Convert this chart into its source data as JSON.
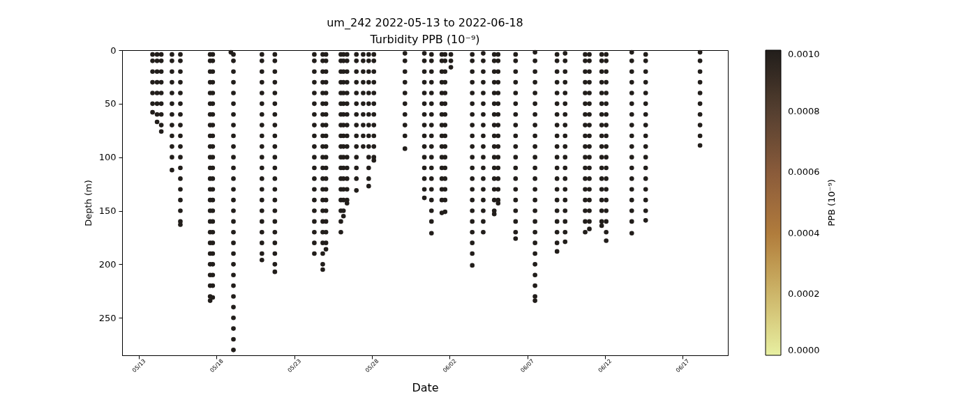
{
  "chart_data": {
    "type": "scatter",
    "title": "um_242 2022-05-13 to 2022-06-18",
    "subtitle": "Turbidity PPB (10⁻⁹)",
    "xlabel": "Date",
    "ylabel": "Depth (m)",
    "clabel": "PPB (10⁻⁹)",
    "marker": "circle",
    "xlim": [
      "2022-05-11T22:00",
      "2022-06-19T22:00"
    ],
    "xticks": [
      {
        "value": "2022-05-13",
        "label": "05/13"
      },
      {
        "value": "2022-05-18",
        "label": "05/18"
      },
      {
        "value": "2022-05-23",
        "label": "05/23"
      },
      {
        "value": "2022-05-28",
        "label": "05/28"
      },
      {
        "value": "2022-06-02",
        "label": "06/02"
      },
      {
        "value": "2022-06-07",
        "label": "06/07"
      },
      {
        "value": "2022-06-12",
        "label": "06/12"
      },
      {
        "value": "2022-06-17",
        "label": "06/17"
      }
    ],
    "ylim": [
      285,
      0
    ],
    "yticks": [
      0,
      50,
      100,
      150,
      200,
      250
    ],
    "clim": [
      0,
      0.001
    ],
    "cticks": [
      {
        "value": 0,
        "label": "0.0000"
      },
      {
        "value": 0.0002,
        "label": "0.0002"
      },
      {
        "value": 0.0004,
        "label": "0.0004"
      },
      {
        "value": 0.0006,
        "label": "0.0006"
      },
      {
        "value": 0.0008,
        "label": "0.0008"
      },
      {
        "value": 0.001,
        "label": "0.0010"
      }
    ],
    "x": [
      "2022-05-13T21:00",
      "2022-05-13T21:00",
      "2022-05-13T21:00",
      "2022-05-13T21:00",
      "2022-05-13T21:00",
      "2022-05-13T21:00",
      "2022-05-13T21:00",
      "2022-05-14T04:00",
      "2022-05-14T04:00",
      "2022-05-14T04:00",
      "2022-05-14T04:00",
      "2022-05-14T04:00",
      "2022-05-14T04:00",
      "2022-05-14T04:00",
      "2022-05-14T04:00",
      "2022-05-14T10:30",
      "2022-05-14T10:30",
      "2022-05-14T10:30",
      "2022-05-14T10:30",
      "2022-05-14T10:30",
      "2022-05-14T10:30",
      "2022-05-14T10:30",
      "2022-05-14T10:30",
      "2022-05-14T10:30",
      "2022-05-15T03:00",
      "2022-05-15T03:00",
      "2022-05-15T03:00",
      "2022-05-15T03:00",
      "2022-05-15T03:00",
      "2022-05-15T03:00",
      "2022-05-15T03:00",
      "2022-05-15T03:00",
      "2022-05-15T03:00",
      "2022-05-15T03:00",
      "2022-05-15T03:00",
      "2022-05-15T03:00",
      "2022-05-15T16:00",
      "2022-05-15T16:00",
      "2022-05-15T16:00",
      "2022-05-15T16:00",
      "2022-05-15T16:00",
      "2022-05-15T16:00",
      "2022-05-15T16:00",
      "2022-05-15T16:00",
      "2022-05-15T16:00",
      "2022-05-15T16:00",
      "2022-05-15T16:00",
      "2022-05-15T16:00",
      "2022-05-15T16:00",
      "2022-05-15T16:00",
      "2022-05-15T16:00",
      "2022-05-15T16:00",
      "2022-05-15T16:00",
      "2022-05-15T16:00",
      "2022-05-17T14:00",
      "2022-05-17T14:00",
      "2022-05-17T14:00",
      "2022-05-17T14:00",
      "2022-05-17T14:00",
      "2022-05-17T14:00",
      "2022-05-17T14:00",
      "2022-05-17T14:00",
      "2022-05-17T14:00",
      "2022-05-17T14:00",
      "2022-05-17T14:00",
      "2022-05-17T14:00",
      "2022-05-17T14:00",
      "2022-05-17T14:00",
      "2022-05-17T14:00",
      "2022-05-17T14:00",
      "2022-05-17T14:00",
      "2022-05-17T14:00",
      "2022-05-17T14:00",
      "2022-05-17T14:00",
      "2022-05-17T14:00",
      "2022-05-17T14:00",
      "2022-05-17T14:00",
      "2022-05-17T14:00",
      "2022-05-17T14:00",
      "2022-05-17T18:00",
      "2022-05-17T18:00",
      "2022-05-17T18:00",
      "2022-05-17T18:00",
      "2022-05-17T18:00",
      "2022-05-17T18:00",
      "2022-05-17T18:00",
      "2022-05-17T18:00",
      "2022-05-17T18:00",
      "2022-05-17T18:00",
      "2022-05-17T18:00",
      "2022-05-17T18:00",
      "2022-05-17T18:00",
      "2022-05-17T18:00",
      "2022-05-17T18:00",
      "2022-05-17T18:00",
      "2022-05-17T18:00",
      "2022-05-17T18:00",
      "2022-05-17T18:00",
      "2022-05-17T18:00",
      "2022-05-17T18:00",
      "2022-05-17T18:00",
      "2022-05-17T18:00",
      "2022-05-17T18:00",
      "2022-05-18T22:00",
      "2022-05-19T02:00",
      "2022-05-19T02:00",
      "2022-05-19T02:00",
      "2022-05-19T02:00",
      "2022-05-19T02:00",
      "2022-05-19T02:00",
      "2022-05-19T02:00",
      "2022-05-19T02:00",
      "2022-05-19T02:00",
      "2022-05-19T02:00",
      "2022-05-19T02:00",
      "2022-05-19T02:00",
      "2022-05-19T02:00",
      "2022-05-19T02:00",
      "2022-05-19T02:00",
      "2022-05-19T02:00",
      "2022-05-19T02:00",
      "2022-05-19T02:00",
      "2022-05-19T02:00",
      "2022-05-19T02:00",
      "2022-05-19T02:00",
      "2022-05-19T02:00",
      "2022-05-19T02:00",
      "2022-05-19T02:00",
      "2022-05-19T02:00",
      "2022-05-19T02:00",
      "2022-05-19T02:00",
      "2022-05-19T02:00",
      "2022-05-19T02:00",
      "2022-05-20T22:00",
      "2022-05-20T22:00",
      "2022-05-20T22:00",
      "2022-05-20T22:00",
      "2022-05-20T22:00",
      "2022-05-20T22:00",
      "2022-05-20T22:00",
      "2022-05-20T22:00",
      "2022-05-20T22:00",
      "2022-05-20T22:00",
      "2022-05-20T22:00",
      "2022-05-20T22:00",
      "2022-05-20T22:00",
      "2022-05-20T22:00",
      "2022-05-20T22:00",
      "2022-05-20T22:00",
      "2022-05-20T22:00",
      "2022-05-20T22:00",
      "2022-05-20T22:00",
      "2022-05-20T22:00",
      "2022-05-20T22:00",
      "2022-05-21T18:00",
      "2022-05-21T18:00",
      "2022-05-21T18:00",
      "2022-05-21T18:00",
      "2022-05-21T18:00",
      "2022-05-21T18:00",
      "2022-05-21T18:00",
      "2022-05-21T18:00",
      "2022-05-21T18:00",
      "2022-05-21T18:00",
      "2022-05-21T18:00",
      "2022-05-21T18:00",
      "2022-05-21T18:00",
      "2022-05-21T18:00",
      "2022-05-21T18:00",
      "2022-05-21T18:00",
      "2022-05-21T18:00",
      "2022-05-21T18:00",
      "2022-05-21T18:00",
      "2022-05-21T18:00",
      "2022-05-21T18:00",
      "2022-05-21T18:00",
      "2022-05-24T07:00",
      "2022-05-24T07:00",
      "2022-05-24T07:00",
      "2022-05-24T07:00",
      "2022-05-24T07:00",
      "2022-05-24T07:00",
      "2022-05-24T07:00",
      "2022-05-24T07:00",
      "2022-05-24T07:00",
      "2022-05-24T07:00",
      "2022-05-24T07:00",
      "2022-05-24T07:00",
      "2022-05-24T07:00",
      "2022-05-24T07:00",
      "2022-05-24T07:00",
      "2022-05-24T07:00",
      "2022-05-24T07:00",
      "2022-05-24T07:00",
      "2022-05-24T07:00",
      "2022-05-24T07:00",
      "2022-05-24T20:00",
      "2022-05-24T20:00",
      "2022-05-24T20:00",
      "2022-05-24T20:00",
      "2022-05-24T20:00",
      "2022-05-24T20:00",
      "2022-05-24T20:00",
      "2022-05-24T20:00",
      "2022-05-24T20:00",
      "2022-05-24T20:00",
      "2022-05-24T20:00",
      "2022-05-24T20:00",
      "2022-05-24T20:00",
      "2022-05-24T20:00",
      "2022-05-24T20:00",
      "2022-05-24T20:00",
      "2022-05-24T20:00",
      "2022-05-24T20:00",
      "2022-05-24T20:00",
      "2022-05-24T20:00",
      "2022-05-24T20:00",
      "2022-05-24T20:00",
      "2022-05-25T01:00",
      "2022-05-25T01:00",
      "2022-05-25T01:00",
      "2022-05-25T01:00",
      "2022-05-25T01:00",
      "2022-05-25T01:00",
      "2022-05-25T01:00",
      "2022-05-25T01:00",
      "2022-05-25T01:00",
      "2022-05-25T01:00",
      "2022-05-25T01:00",
      "2022-05-25T01:00",
      "2022-05-25T01:00",
      "2022-05-25T01:00",
      "2022-05-25T01:00",
      "2022-05-25T01:00",
      "2022-05-25T01:00",
      "2022-05-25T01:00",
      "2022-05-25T01:00",
      "2022-05-25T01:00",
      "2022-05-26T00:00",
      "2022-05-26T00:00",
      "2022-05-26T00:00",
      "2022-05-26T00:00",
      "2022-05-26T00:00",
      "2022-05-26T00:00",
      "2022-05-26T00:00",
      "2022-05-26T00:00",
      "2022-05-26T00:00",
      "2022-05-26T00:00",
      "2022-05-26T00:00",
      "2022-05-26T00:00",
      "2022-05-26T00:00",
      "2022-05-26T00:00",
      "2022-05-26T00:00",
      "2022-05-26T00:00",
      "2022-05-26T00:00",
      "2022-05-26T00:00",
      "2022-05-26T04:00",
      "2022-05-26T04:00",
      "2022-05-26T04:00",
      "2022-05-26T04:00",
      "2022-05-26T04:00",
      "2022-05-26T04:00",
      "2022-05-26T04:00",
      "2022-05-26T04:00",
      "2022-05-26T04:00",
      "2022-05-26T04:00",
      "2022-05-26T04:00",
      "2022-05-26T04:00",
      "2022-05-26T04:00",
      "2022-05-26T04:00",
      "2022-05-26T04:00",
      "2022-05-26T04:00",
      "2022-05-26T04:00",
      "2022-05-26T09:30",
      "2022-05-26T09:30",
      "2022-05-26T09:30",
      "2022-05-26T09:30",
      "2022-05-26T09:30",
      "2022-05-26T09:30",
      "2022-05-26T09:30",
      "2022-05-26T09:30",
      "2022-05-26T09:30",
      "2022-05-26T09:30",
      "2022-05-26T09:30",
      "2022-05-26T09:30",
      "2022-05-26T09:30",
      "2022-05-26T09:30",
      "2022-05-26T09:30",
      "2022-05-26T09:30",
      "2022-05-27T00:00",
      "2022-05-27T00:00",
      "2022-05-27T00:00",
      "2022-05-27T00:00",
      "2022-05-27T00:00",
      "2022-05-27T00:00",
      "2022-05-27T00:00",
      "2022-05-27T00:00",
      "2022-05-27T00:00",
      "2022-05-27T00:00",
      "2022-05-27T00:00",
      "2022-05-27T00:00",
      "2022-05-27T00:00",
      "2022-05-27T00:00",
      "2022-05-27T10:30",
      "2022-05-27T10:30",
      "2022-05-27T10:30",
      "2022-05-27T10:30",
      "2022-05-27T10:30",
      "2022-05-27T10:30",
      "2022-05-27T10:30",
      "2022-05-27T10:30",
      "2022-05-27T10:30",
      "2022-05-27T10:30",
      "2022-05-27T19:00",
      "2022-05-27T19:00",
      "2022-05-27T19:00",
      "2022-05-27T19:00",
      "2022-05-27T19:00",
      "2022-05-27T19:00",
      "2022-05-27T19:00",
      "2022-05-27T19:00",
      "2022-05-27T19:00",
      "2022-05-27T19:00",
      "2022-05-27T19:00",
      "2022-05-27T19:00",
      "2022-05-27T19:00",
      "2022-05-27T19:00",
      "2022-05-28T03:00",
      "2022-05-28T03:00",
      "2022-05-28T03:00",
      "2022-05-28T03:00",
      "2022-05-28T03:00",
      "2022-05-28T03:00",
      "2022-05-28T03:00",
      "2022-05-28T03:00",
      "2022-05-28T03:00",
      "2022-05-28T03:00",
      "2022-05-28T03:00",
      "2022-05-28T03:00",
      "2022-05-30T03:00",
      "2022-05-30T03:00",
      "2022-05-30T03:00",
      "2022-05-30T03:00",
      "2022-05-30T03:00",
      "2022-05-30T03:00",
      "2022-05-30T03:00",
      "2022-05-30T03:00",
      "2022-05-30T03:00",
      "2022-05-30T03:00",
      "2022-05-31T09:00",
      "2022-05-31T09:00",
      "2022-05-31T09:00",
      "2022-05-31T09:00",
      "2022-05-31T09:00",
      "2022-05-31T09:00",
      "2022-05-31T09:00",
      "2022-05-31T09:00",
      "2022-05-31T09:00",
      "2022-05-31T09:00",
      "2022-05-31T09:00",
      "2022-05-31T09:00",
      "2022-05-31T09:00",
      "2022-05-31T09:00",
      "2022-05-31T09:00",
      "2022-05-31T20:00",
      "2022-05-31T20:00",
      "2022-05-31T20:00",
      "2022-05-31T20:00",
      "2022-05-31T20:00",
      "2022-05-31T20:00",
      "2022-05-31T20:00",
      "2022-05-31T20:00",
      "2022-05-31T20:00",
      "2022-05-31T20:00",
      "2022-05-31T20:00",
      "2022-05-31T20:00",
      "2022-05-31T20:00",
      "2022-05-31T20:00",
      "2022-05-31T20:00",
      "2022-05-31T20:00",
      "2022-05-31T20:00",
      "2022-05-31T20:00",
      "2022-06-01T12:00",
      "2022-06-01T12:00",
      "2022-06-01T12:00",
      "2022-06-01T12:00",
      "2022-06-01T12:00",
      "2022-06-01T12:00",
      "2022-06-01T12:00",
      "2022-06-01T12:00",
      "2022-06-01T12:00",
      "2022-06-01T12:00",
      "2022-06-01T12:00",
      "2022-06-01T12:00",
      "2022-06-01T12:00",
      "2022-06-01T12:00",
      "2022-06-01T12:00",
      "2022-06-01T12:00",
      "2022-06-01T17:00",
      "2022-06-01T17:00",
      "2022-06-01T17:00",
      "2022-06-01T17:00",
      "2022-06-01T17:00",
      "2022-06-01T17:00",
      "2022-06-01T17:00",
      "2022-06-01T17:00",
      "2022-06-01T17:00",
      "2022-06-01T17:00",
      "2022-06-01T17:00",
      "2022-06-01T17:00",
      "2022-06-01T17:00",
      "2022-06-01T17:00",
      "2022-06-01T17:00",
      "2022-06-01T17:00",
      "2022-06-02T02:00",
      "2022-06-02T02:00",
      "2022-06-02T02:00",
      "2022-06-03T11:00",
      "2022-06-03T11:00",
      "2022-06-03T11:00",
      "2022-06-03T11:00",
      "2022-06-03T11:00",
      "2022-06-03T11:00",
      "2022-06-03T11:00",
      "2022-06-03T11:00",
      "2022-06-03T11:00",
      "2022-06-03T11:00",
      "2022-06-03T11:00",
      "2022-06-03T11:00",
      "2022-06-03T11:00",
      "2022-06-03T11:00",
      "2022-06-03T11:00",
      "2022-06-03T11:00",
      "2022-06-03T11:00",
      "2022-06-03T11:00",
      "2022-06-03T11:00",
      "2022-06-03T11:00",
      "2022-06-03T11:00",
      "2022-06-04T04:00",
      "2022-06-04T04:00",
      "2022-06-04T04:00",
      "2022-06-04T04:00",
      "2022-06-04T04:00",
      "2022-06-04T04:00",
      "2022-06-04T04:00",
      "2022-06-04T04:00",
      "2022-06-04T04:00",
      "2022-06-04T04:00",
      "2022-06-04T04:00",
      "2022-06-04T04:00",
      "2022-06-04T04:00",
      "2022-06-04T04:00",
      "2022-06-04T04:00",
      "2022-06-04T04:00",
      "2022-06-04T04:00",
      "2022-06-04T04:00",
      "2022-06-04T21:00",
      "2022-06-04T21:00",
      "2022-06-04T21:00",
      "2022-06-04T21:00",
      "2022-06-04T21:00",
      "2022-06-04T21:00",
      "2022-06-04T21:00",
      "2022-06-04T21:00",
      "2022-06-04T21:00",
      "2022-06-04T21:00",
      "2022-06-04T21:00",
      "2022-06-04T21:00",
      "2022-06-04T21:00",
      "2022-06-04T21:00",
      "2022-06-04T21:00",
      "2022-06-04T21:00",
      "2022-06-04T21:00",
      "2022-06-05T03:00",
      "2022-06-05T03:00",
      "2022-06-05T03:00",
      "2022-06-05T03:00",
      "2022-06-05T03:00",
      "2022-06-05T03:00",
      "2022-06-05T03:00",
      "2022-06-05T03:00",
      "2022-06-05T03:00",
      "2022-06-05T03:00",
      "2022-06-05T03:00",
      "2022-06-05T03:00",
      "2022-06-05T03:00",
      "2022-06-05T03:00",
      "2022-06-05T03:00",
      "2022-06-05T03:00",
      "2022-06-06T06:00",
      "2022-06-06T06:00",
      "2022-06-06T06:00",
      "2022-06-06T06:00",
      "2022-06-06T06:00",
      "2022-06-06T06:00",
      "2022-06-06T06:00",
      "2022-06-06T06:00",
      "2022-06-06T06:00",
      "2022-06-06T06:00",
      "2022-06-06T06:00",
      "2022-06-06T06:00",
      "2022-06-06T06:00",
      "2022-06-06T06:00",
      "2022-06-06T06:00",
      "2022-06-06T06:00",
      "2022-06-06T06:00",
      "2022-06-06T06:00",
      "2022-06-06T06:00",
      "2022-06-07T12:00",
      "2022-06-07T12:00",
      "2022-06-07T12:00",
      "2022-06-07T12:00",
      "2022-06-07T12:00",
      "2022-06-07T12:00",
      "2022-06-07T12:00",
      "2022-06-07T12:00",
      "2022-06-07T12:00",
      "2022-06-07T12:00",
      "2022-06-07T12:00",
      "2022-06-07T12:00",
      "2022-06-07T12:00",
      "2022-06-07T12:00",
      "2022-06-07T12:00",
      "2022-06-07T12:00",
      "2022-06-07T12:00",
      "2022-06-07T12:00",
      "2022-06-07T12:00",
      "2022-06-07T12:00",
      "2022-06-07T12:00",
      "2022-06-07T12:00",
      "2022-06-07T12:00",
      "2022-06-07T12:00",
      "2022-06-07T12:00",
      "2022-06-08T22:00",
      "2022-06-08T22:00",
      "2022-06-08T22:00",
      "2022-06-08T22:00",
      "2022-06-08T22:00",
      "2022-06-08T22:00",
      "2022-06-08T22:00",
      "2022-06-08T22:00",
      "2022-06-08T22:00",
      "2022-06-08T22:00",
      "2022-06-08T22:00",
      "2022-06-08T22:00",
      "2022-06-08T22:00",
      "2022-06-08T22:00",
      "2022-06-08T22:00",
      "2022-06-08T22:00",
      "2022-06-08T22:00",
      "2022-06-08T22:00",
      "2022-06-08T22:00",
      "2022-06-08T22:00",
      "2022-06-09T10:30",
      "2022-06-09T10:30",
      "2022-06-09T10:30",
      "2022-06-09T10:30",
      "2022-06-09T10:30",
      "2022-06-09T10:30",
      "2022-06-09T10:30",
      "2022-06-09T10:30",
      "2022-06-09T10:30",
      "2022-06-09T10:30",
      "2022-06-09T10:30",
      "2022-06-09T10:30",
      "2022-06-09T10:30",
      "2022-06-09T10:30",
      "2022-06-09T10:30",
      "2022-06-09T10:30",
      "2022-06-09T10:30",
      "2022-06-09T10:30",
      "2022-06-09T10:30",
      "2022-06-10T17:30",
      "2022-06-10T17:30",
      "2022-06-10T17:30",
      "2022-06-10T17:30",
      "2022-06-10T17:30",
      "2022-06-10T17:30",
      "2022-06-10T17:30",
      "2022-06-10T17:30",
      "2022-06-10T17:30",
      "2022-06-10T17:30",
      "2022-06-10T17:30",
      "2022-06-10T17:30",
      "2022-06-10T17:30",
      "2022-06-10T17:30",
      "2022-06-10T17:30",
      "2022-06-10T17:30",
      "2022-06-10T17:30",
      "2022-06-10T17:30",
      "2022-06-11T00:00",
      "2022-06-11T00:00",
      "2022-06-11T00:00",
      "2022-06-11T00:00",
      "2022-06-11T00:00",
      "2022-06-11T00:00",
      "2022-06-11T00:00",
      "2022-06-11T00:00",
      "2022-06-11T00:00",
      "2022-06-11T00:00",
      "2022-06-11T00:00",
      "2022-06-11T00:00",
      "2022-06-11T00:00",
      "2022-06-11T00:00",
      "2022-06-11T00:00",
      "2022-06-11T00:00",
      "2022-06-11T00:00",
      "2022-06-11T00:00",
      "2022-06-11T19:00",
      "2022-06-11T19:00",
      "2022-06-11T19:00",
      "2022-06-11T19:00",
      "2022-06-11T19:00",
      "2022-06-11T19:00",
      "2022-06-11T19:00",
      "2022-06-11T19:00",
      "2022-06-11T19:00",
      "2022-06-11T19:00",
      "2022-06-11T19:00",
      "2022-06-11T19:00",
      "2022-06-11T19:00",
      "2022-06-11T19:00",
      "2022-06-11T19:00",
      "2022-06-11T19:00",
      "2022-06-11T19:00",
      "2022-06-11T19:00",
      "2022-06-12T02:00",
      "2022-06-12T02:00",
      "2022-06-12T02:00",
      "2022-06-12T02:00",
      "2022-06-12T02:00",
      "2022-06-12T02:00",
      "2022-06-12T02:00",
      "2022-06-12T02:00",
      "2022-06-12T02:00",
      "2022-06-12T02:00",
      "2022-06-12T02:00",
      "2022-06-12T02:00",
      "2022-06-12T02:00",
      "2022-06-12T02:00",
      "2022-06-12T02:00",
      "2022-06-12T02:00",
      "2022-06-12T02:00",
      "2022-06-12T02:00",
      "2022-06-12T02:00",
      "2022-06-13T17:30",
      "2022-06-13T17:30",
      "2022-06-13T17:30",
      "2022-06-13T17:30",
      "2022-06-13T17:30",
      "2022-06-13T17:30",
      "2022-06-13T17:30",
      "2022-06-13T17:30",
      "2022-06-13T17:30",
      "2022-06-13T17:30",
      "2022-06-13T17:30",
      "2022-06-13T17:30",
      "2022-06-13T17:30",
      "2022-06-13T17:30",
      "2022-06-13T17:30",
      "2022-06-13T17:30",
      "2022-06-13T17:30",
      "2022-06-13T17:30",
      "2022-06-14T15:00",
      "2022-06-14T15:00",
      "2022-06-14T15:00",
      "2022-06-14T15:00",
      "2022-06-14T15:00",
      "2022-06-14T15:00",
      "2022-06-14T15:00",
      "2022-06-14T15:00",
      "2022-06-14T15:00",
      "2022-06-14T15:00",
      "2022-06-14T15:00",
      "2022-06-14T15:00",
      "2022-06-14T15:00",
      "2022-06-14T15:00",
      "2022-06-14T15:00",
      "2022-06-14T15:00",
      "2022-06-14T15:00",
      "2022-06-18T03:00",
      "2022-06-18T03:00",
      "2022-06-18T03:00",
      "2022-06-18T03:00",
      "2022-06-18T03:00",
      "2022-06-18T03:00",
      "2022-06-18T03:00",
      "2022-06-18T03:00",
      "2022-06-18T03:00",
      "2022-06-18T03:00"
    ],
    "values": [
      4,
      10,
      20,
      30,
      40,
      50,
      58,
      4,
      10,
      20,
      30,
      40,
      50,
      60,
      67,
      4,
      10,
      20,
      30,
      40,
      50,
      60,
      70,
      76,
      4,
      10,
      20,
      30,
      40,
      50,
      60,
      70,
      80,
      90,
      100,
      112,
      4,
      10,
      20,
      30,
      40,
      50,
      60,
      70,
      80,
      90,
      100,
      110,
      120,
      130,
      140,
      150,
      160,
      163,
      4,
      10,
      20,
      30,
      40,
      50,
      60,
      70,
      80,
      90,
      100,
      110,
      120,
      130,
      140,
      150,
      160,
      170,
      180,
      190,
      200,
      210,
      220,
      230,
      234,
      4,
      10,
      20,
      30,
      40,
      50,
      60,
      70,
      80,
      90,
      100,
      110,
      120,
      130,
      140,
      150,
      160,
      170,
      180,
      190,
      200,
      210,
      220,
      231,
      2,
      4,
      10,
      20,
      30,
      40,
      50,
      60,
      70,
      80,
      90,
      100,
      110,
      120,
      130,
      140,
      150,
      160,
      170,
      180,
      190,
      200,
      210,
      220,
      230,
      240,
      250,
      260,
      270,
      280,
      4,
      10,
      20,
      30,
      40,
      50,
      60,
      70,
      80,
      90,
      100,
      110,
      120,
      130,
      140,
      150,
      160,
      170,
      180,
      190,
      196,
      4,
      10,
      20,
      30,
      40,
      50,
      60,
      70,
      80,
      90,
      100,
      110,
      120,
      130,
      140,
      150,
      160,
      170,
      180,
      190,
      200,
      207,
      4,
      10,
      20,
      30,
      40,
      50,
      60,
      70,
      80,
      90,
      100,
      110,
      120,
      130,
      140,
      150,
      160,
      170,
      180,
      190,
      4,
      10,
      20,
      30,
      40,
      50,
      60,
      70,
      80,
      90,
      100,
      110,
      120,
      130,
      140,
      150,
      160,
      170,
      180,
      190,
      200,
      205,
      4,
      10,
      20,
      30,
      40,
      50,
      60,
      70,
      80,
      90,
      100,
      110,
      120,
      130,
      140,
      150,
      160,
      170,
      180,
      186,
      4,
      10,
      20,
      30,
      40,
      50,
      60,
      70,
      80,
      90,
      100,
      110,
      120,
      130,
      140,
      150,
      160,
      170,
      4,
      10,
      20,
      30,
      40,
      50,
      60,
      70,
      80,
      90,
      100,
      110,
      120,
      130,
      140,
      150,
      155,
      4,
      10,
      20,
      30,
      40,
      50,
      60,
      70,
      80,
      90,
      100,
      110,
      120,
      130,
      140,
      143,
      4,
      10,
      20,
      30,
      40,
      50,
      60,
      70,
      80,
      90,
      100,
      110,
      120,
      131,
      4,
      10,
      20,
      30,
      40,
      50,
      60,
      70,
      80,
      90,
      4,
      10,
      20,
      30,
      40,
      50,
      60,
      70,
      80,
      90,
      100,
      110,
      120,
      127,
      4,
      10,
      20,
      30,
      40,
      50,
      60,
      70,
      80,
      90,
      100,
      103,
      3,
      10,
      20,
      30,
      40,
      50,
      60,
      70,
      80,
      92,
      3,
      10,
      20,
      30,
      40,
      50,
      60,
      70,
      80,
      90,
      100,
      110,
      120,
      130,
      138,
      4,
      10,
      20,
      30,
      40,
      50,
      60,
      70,
      80,
      90,
      100,
      110,
      120,
      130,
      140,
      150,
      160,
      171,
      4,
      10,
      20,
      30,
      40,
      50,
      60,
      70,
      80,
      90,
      100,
      110,
      120,
      130,
      140,
      152,
      4,
      10,
      20,
      30,
      40,
      50,
      60,
      70,
      80,
      90,
      100,
      110,
      120,
      130,
      140,
      151,
      4,
      10,
      16,
      4,
      10,
      20,
      30,
      40,
      50,
      60,
      70,
      80,
      90,
      100,
      110,
      120,
      130,
      140,
      150,
      160,
      170,
      180,
      190,
      201,
      3,
      10,
      20,
      30,
      40,
      50,
      60,
      70,
      80,
      90,
      100,
      110,
      120,
      130,
      140,
      150,
      160,
      170,
      4,
      10,
      20,
      30,
      40,
      50,
      60,
      70,
      80,
      90,
      100,
      110,
      120,
      130,
      140,
      150,
      153,
      4,
      10,
      20,
      30,
      40,
      50,
      60,
      70,
      80,
      90,
      100,
      110,
      120,
      130,
      140,
      143,
      4,
      10,
      20,
      30,
      40,
      50,
      60,
      70,
      80,
      90,
      100,
      110,
      120,
      130,
      140,
      150,
      160,
      170,
      176,
      2,
      10,
      20,
      30,
      40,
      50,
      60,
      70,
      80,
      90,
      100,
      110,
      120,
      130,
      140,
      150,
      160,
      170,
      180,
      190,
      200,
      210,
      220,
      230,
      234,
      4,
      10,
      20,
      30,
      40,
      50,
      60,
      70,
      80,
      90,
      100,
      110,
      120,
      130,
      140,
      150,
      160,
      170,
      180,
      188,
      3,
      10,
      20,
      30,
      40,
      50,
      60,
      70,
      80,
      90,
      100,
      110,
      120,
      130,
      140,
      150,
      160,
      170,
      179,
      4,
      10,
      20,
      30,
      40,
      50,
      60,
      70,
      80,
      90,
      100,
      110,
      120,
      130,
      140,
      150,
      160,
      170,
      4,
      10,
      20,
      30,
      40,
      50,
      60,
      70,
      80,
      90,
      100,
      110,
      120,
      130,
      140,
      150,
      160,
      167,
      4,
      10,
      20,
      30,
      40,
      50,
      60,
      70,
      80,
      90,
      100,
      110,
      120,
      130,
      140,
      150,
      160,
      164,
      4,
      10,
      20,
      30,
      40,
      50,
      60,
      70,
      80,
      90,
      100,
      110,
      120,
      130,
      140,
      150,
      160,
      170,
      178,
      2,
      10,
      20,
      30,
      40,
      50,
      60,
      70,
      80,
      90,
      100,
      110,
      120,
      130,
      140,
      150,
      160,
      171,
      4,
      10,
      20,
      30,
      40,
      50,
      60,
      70,
      80,
      90,
      100,
      110,
      120,
      130,
      140,
      150,
      159,
      2,
      10,
      20,
      30,
      40,
      50,
      60,
      70,
      80,
      89
    ],
    "cvalues": [
      0.001,
      0.001,
      0.001,
      0.001,
      0.001,
      0.001,
      0.001,
      0.001,
      0.001,
      0.001,
      0.001,
      0.001,
      0.001,
      0.001,
      0.001,
      0.001,
      0.001,
      0.001,
      0.001,
      0.001,
      0.001,
      0.001,
      0.001,
      0.001,
      0.001,
      0.001,
      0.001,
      0.001,
      0.001,
      0.001,
      0.001,
      0.001,
      0.001,
      0.001,
      0.001,
      0.001,
      0.001,
      0.001,
      0.001,
      0.001,
      0.001,
      0.001,
      0.001,
      0.001,
      0.001,
      0.001,
      0.001,
      0.001,
      0.001,
      0.001,
      0.001,
      0.001,
      0.001,
      0.001,
      0.001,
      0.001,
      0.001,
      0.001,
      0.001,
      0.001,
      0.001,
      0.001,
      0.001,
      0.001,
      0.001,
      0.001,
      0.001,
      0.001,
      0.001,
      0.001,
      0.001,
      0.001,
      0.001,
      0.001,
      0.001,
      0.001,
      0.001,
      0.001,
      0.001,
      0.001,
      0.001,
      0.001,
      0.001,
      0.001,
      0.001,
      0.001,
      0.001,
      0.001,
      0.001,
      0.001,
      0.001,
      0.001,
      0.001,
      0.001,
      0.001,
      0.001,
      0.001,
      0.001,
      0.001,
      0.001,
      0.001,
      0.001,
      0.001,
      0.001,
      0.001,
      0.001,
      0.001,
      0.001,
      0.001,
      0.001,
      0.001,
      0.001,
      0.001,
      0.001,
      0.001,
      0.001,
      0.001,
      0.001,
      0.001,
      0.001,
      0.001,
      0.001,
      0.001,
      0.001,
      0.001,
      0.001,
      0.001,
      0.001,
      0.001,
      0.001,
      0.001,
      0.001,
      0.001,
      0.001,
      0.001,
      0.001,
      0.001,
      0.001,
      0.001,
      0.001,
      0.001,
      0.001,
      0.001,
      0.001,
      0.001,
      0.001,
      0.001,
      0.001,
      0.001,
      0.001,
      0.001,
      0.001,
      0.001,
      0.001,
      0.001,
      0.001,
      0.001,
      0.001,
      0.001,
      0.001,
      0.001,
      0.001,
      0.001,
      0.001,
      0.001,
      0.001,
      0.001,
      0.001,
      0.001,
      0.001,
      0.001,
      0.001,
      0.001,
      0.001,
      0.001,
      0.001,
      0.001,
      0.001,
      0.001,
      0.001,
      0.001,
      0.001,
      0.001,
      0.001,
      0.001,
      0.001,
      0.001,
      0.001,
      0.001,
      0.001,
      0.001,
      0.001,
      0.001,
      0.001,
      0.001,
      0.001,
      0.001,
      0.001,
      0.001,
      0.001,
      0.001,
      0.001,
      0.001,
      0.001,
      0.001,
      0.001,
      0.001,
      0.001,
      0.001,
      0.001,
      0.001,
      0.001,
      0.001,
      0.001,
      0.001,
      0.001,
      0.001,
      0.001,
      0.001,
      0.001,
      0.001,
      0.001,
      0.001,
      0.001,
      0.001,
      0.001,
      0.001,
      0.001,
      0.001,
      0.001,
      0.001,
      0.001,
      0.001,
      0.001,
      0.001,
      0.001,
      0.001,
      0.001,
      0.001,
      0.001,
      0.001,
      0.001,
      0.001,
      0.001,
      0.001,
      0.001,
      0.001,
      0.001,
      0.001,
      0.001,
      0.001,
      0.001,
      0.001,
      0.001,
      0.001,
      0.001,
      0.001,
      0.001,
      0.001,
      0.001,
      0.001,
      0.001,
      0.001,
      0.001,
      0.001,
      0.001,
      0.001,
      0.001,
      0.001,
      0.001,
      0.001,
      0.001,
      0.001,
      0.001,
      0.001,
      0.001,
      0.001,
      0.001,
      0.001,
      0.001,
      0.001,
      0.001,
      0.001,
      0.001,
      0.001,
      0.001,
      0.001,
      0.001,
      0.001,
      0.001,
      0.001,
      0.001,
      0.001,
      0.001,
      0.001,
      0.001,
      0.001,
      0.001,
      0.001,
      0.001,
      0.001,
      0.001,
      0.001,
      0.001,
      0.001,
      0.001,
      0.001,
      0.001,
      0.001,
      0.001,
      0.001,
      0.001,
      0.001,
      0.001,
      0.001,
      0.001,
      0.001,
      0.001,
      0.001,
      0.001,
      0.001,
      0.001,
      0.001,
      0.001,
      0.001,
      0.001,
      0.001,
      0.001,
      0.001,
      0.001,
      0.001,
      0.001,
      0.001,
      0.001,
      0.001,
      0.001,
      0.001,
      0.001,
      0.001,
      0.001,
      0.001,
      0.001,
      0.001,
      0.001,
      0.001,
      0.001,
      0.001,
      0.001,
      0.001,
      0.001,
      0.001,
      0.001,
      0.001,
      0.001,
      0.001,
      0.001,
      0.001,
      0.001,
      0.001,
      0.001,
      0.001,
      0.001,
      0.001,
      0.001,
      0.001,
      0.001,
      0.001,
      0.001,
      0.001,
      0.001,
      0.001,
      0.001,
      0.001,
      0.001,
      0.001,
      0.001,
      0.001,
      0.001,
      0.001,
      0.001,
      0.001,
      0.001,
      0.001,
      0.001,
      0.001,
      0.001,
      0.001,
      0.001,
      0.001,
      0.001,
      0.001,
      0.001,
      0.001,
      0.001,
      0.001,
      0.001,
      0.001,
      0.001,
      0.001,
      0.001,
      0.001,
      0.001,
      0.001,
      0.001,
      0.001,
      0.001,
      0.001,
      0.001,
      0.001,
      0.001,
      0.001,
      0.001,
      0.001,
      0.001,
      0.001,
      0.001,
      0.001,
      0.001,
      0.001,
      0.001,
      0.001,
      0.001,
      0.001,
      0.001,
      0.001,
      0.001,
      0.001,
      0.001,
      0.001,
      0.001,
      0.001,
      0.001,
      0.001,
      0.001,
      0.001,
      0.001,
      0.001,
      0.001,
      0.001,
      0.001,
      0.001,
      0.001,
      0.001,
      0.001,
      0.001,
      0.001,
      0.001,
      0.001,
      0.001,
      0.001,
      0.001,
      0.001,
      0.001,
      0.001,
      0.001,
      0.001,
      0.001,
      0.001,
      0.001,
      0.001,
      0.001,
      0.001,
      0.001,
      0.001,
      0.001,
      0.001,
      0.001,
      0.001,
      0.001,
      0.001,
      0.001,
      0.001,
      0.001,
      0.001,
      0.001,
      0.001,
      0.001,
      0.001,
      0.001,
      0.001,
      0.001,
      0.001,
      0.001,
      0.001,
      0.001,
      0.001,
      0.001,
      0.001,
      0.001,
      0.001,
      0.001,
      0.001,
      0.001,
      0.001,
      0.001,
      0.001,
      0.001,
      0.001,
      0.001,
      0.001,
      0.001,
      0.001,
      0.001,
      0.001,
      0.001,
      0.001,
      0.001,
      0.001,
      0.001,
      0.001,
      0.001,
      0.001,
      0.001,
      0.001,
      0.001,
      0.001,
      0.001,
      0.001,
      0.001,
      0.001,
      0.001,
      0.001,
      0.001,
      0.001,
      0.001,
      0.001,
      0.001,
      0.001,
      0.001,
      0.001,
      0.001,
      0.001,
      0.001,
      0.001,
      0.001,
      0.001,
      0.001,
      0.001,
      0.001,
      0.001,
      0.001,
      0.001,
      0.001,
      0.001,
      0.001,
      0.001,
      0.001,
      0.001,
      0.001,
      0.001,
      0.001,
      0.001,
      0.001,
      0.001,
      0.001,
      0.001,
      0.001,
      0.001,
      0.001,
      0.001,
      0.001,
      0.001,
      0.001,
      0.001,
      0.001,
      0.001,
      0.001,
      0.001,
      0.001,
      0.001,
      0.001,
      0.001,
      0.001,
      0.001,
      0.001,
      0.001,
      0.001,
      0.001,
      0.001,
      0.001,
      0.001,
      0.001,
      0.001,
      0.001,
      0.001,
      0.001,
      0.001,
      0.001,
      0.001,
      0.001,
      0.001,
      0.001,
      0.001,
      0.001,
      0.001,
      0.001,
      0.001,
      0.001,
      0.001,
      0.001,
      0.001,
      0.001,
      0.001,
      0.001,
      0.001,
      0.001,
      0.001,
      0.001,
      0.001,
      0.001,
      0.001,
      0.001,
      0.001,
      0.001,
      0.001,
      0.001,
      0.001,
      0.001,
      0.001,
      0.001,
      0.001,
      0.001,
      0.001,
      0.001,
      0.001,
      0.001,
      0.001,
      0.001,
      0.001,
      0.001,
      0.001,
      0.001,
      0.001,
      0.001,
      0.001,
      0.001,
      0.001,
      0.001,
      0.001,
      0.001,
      0.001,
      0.001,
      0.001,
      0.001,
      0.001,
      0.001,
      0.001,
      0.001,
      0.001,
      0.001,
      0.001,
      0.001,
      0.001,
      0.001,
      0.001,
      0.001,
      0.001,
      0.001,
      0.001,
      0.001,
      0.001,
      0.001,
      0.001,
      0.001,
      0.001,
      0.001,
      0.001,
      0.001,
      0.001,
      0.001,
      0.001,
      0.001,
      0.001,
      0.001,
      0.001,
      0.001,
      0.001,
      0.001,
      0.001,
      0.001,
      0.001,
      0.001,
      0.001,
      0.001,
      0.001,
      0.001,
      0.001,
      0.001,
      0.001,
      0.001
    ]
  }
}
